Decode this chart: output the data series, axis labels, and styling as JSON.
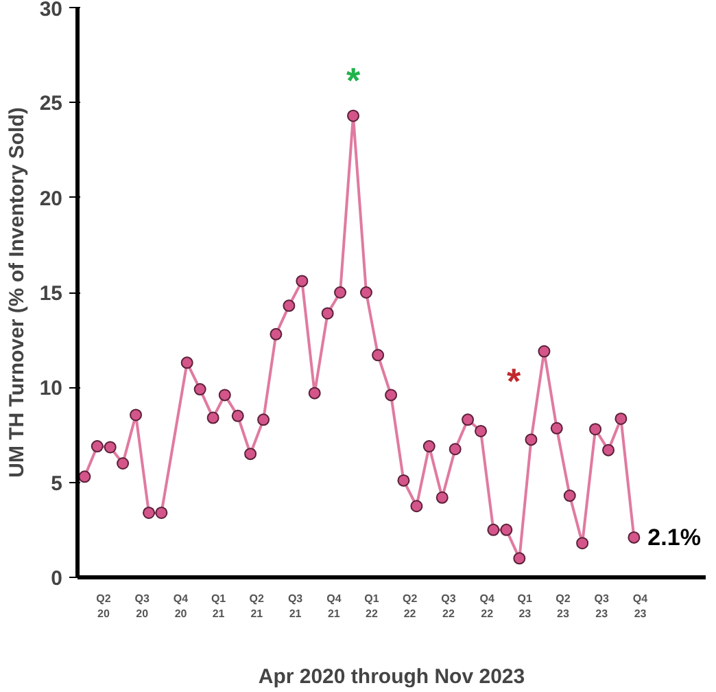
{
  "chart_data": {
    "type": "line",
    "xlabel": "Apr 2020 through Nov 2023",
    "ylabel": "UM TH Turnover (% of Inventory Sold)",
    "x": [
      "2020-04",
      "2020-05",
      "2020-06",
      "2020-07",
      "2020-08",
      "2020-09",
      "2020-10",
      "2020-12",
      "2021-01",
      "2021-02",
      "2021-03",
      "2021-04",
      "2021-05",
      "2021-06",
      "2021-07",
      "2021-08",
      "2021-09",
      "2021-10",
      "2021-11",
      "2021-12",
      "2022-01",
      "2022-02",
      "2022-03",
      "2022-04",
      "2022-05",
      "2022-06",
      "2022-07",
      "2022-08",
      "2022-09",
      "2022-10",
      "2022-11",
      "2022-12",
      "2023-01",
      "2023-02",
      "2023-03",
      "2023-04",
      "2023-05",
      "2023-06",
      "2023-07",
      "2023-08",
      "2023-09",
      "2023-10",
      "2023-11"
    ],
    "series": [
      {
        "color": "#e07aa0",
        "values": [
          5.3,
          6.9,
          6.85,
          6.0,
          8.55,
          3.4,
          3.4,
          11.3,
          9.9,
          8.4,
          9.6,
          8.5,
          6.5,
          8.3,
          12.8,
          14.3,
          15.6,
          9.7,
          13.9,
          15.0,
          24.3,
          15.0,
          11.7,
          9.6,
          5.1,
          3.75,
          6.9,
          4.2,
          6.75,
          8.3,
          7.7,
          2.5,
          2.5,
          1.0,
          7.25,
          11.9,
          7.85,
          4.3,
          1.8,
          7.8,
          6.7,
          8.35,
          2.1
        ]
      }
    ],
    "ylim": [
      0,
      30
    ],
    "yticks": [
      0,
      5,
      10,
      15,
      20,
      25,
      30
    ],
    "xlim": [
      "2020-03-15",
      "2024-04-20"
    ],
    "xticks": [
      {
        "value": "2020-05-16",
        "label": "Q2\n20"
      },
      {
        "value": "2020-08-16",
        "label": "Q3\n20"
      },
      {
        "value": "2020-11-16",
        "label": "Q4\n20"
      },
      {
        "value": "2021-02-14",
        "label": "Q1\n21"
      },
      {
        "value": "2021-05-16",
        "label": "Q2\n21"
      },
      {
        "value": "2021-08-16",
        "label": "Q3\n21"
      },
      {
        "value": "2021-11-16",
        "label": "Q4\n21"
      },
      {
        "value": "2022-02-14",
        "label": "Q1\n22"
      },
      {
        "value": "2022-05-16",
        "label": "Q2\n22"
      },
      {
        "value": "2022-08-16",
        "label": "Q3\n22"
      },
      {
        "value": "2022-11-16",
        "label": "Q4\n22"
      },
      {
        "value": "2023-02-14",
        "label": "Q1\n23"
      },
      {
        "value": "2023-05-16",
        "label": "Q2\n23"
      },
      {
        "value": "2023-08-16",
        "label": "Q3\n23"
      },
      {
        "value": "2023-11-16",
        "label": "Q4\n23"
      }
    ],
    "annotations": [
      {
        "text": "*",
        "x": "2022-01",
        "y": 24.3
      },
      "*",
      {
        "text": "2.1%",
        "x": "2023-11",
        "y": 2.1
      }
    ],
    "marker": "circle",
    "line_style": "solid",
    "grid": false
  }
}
